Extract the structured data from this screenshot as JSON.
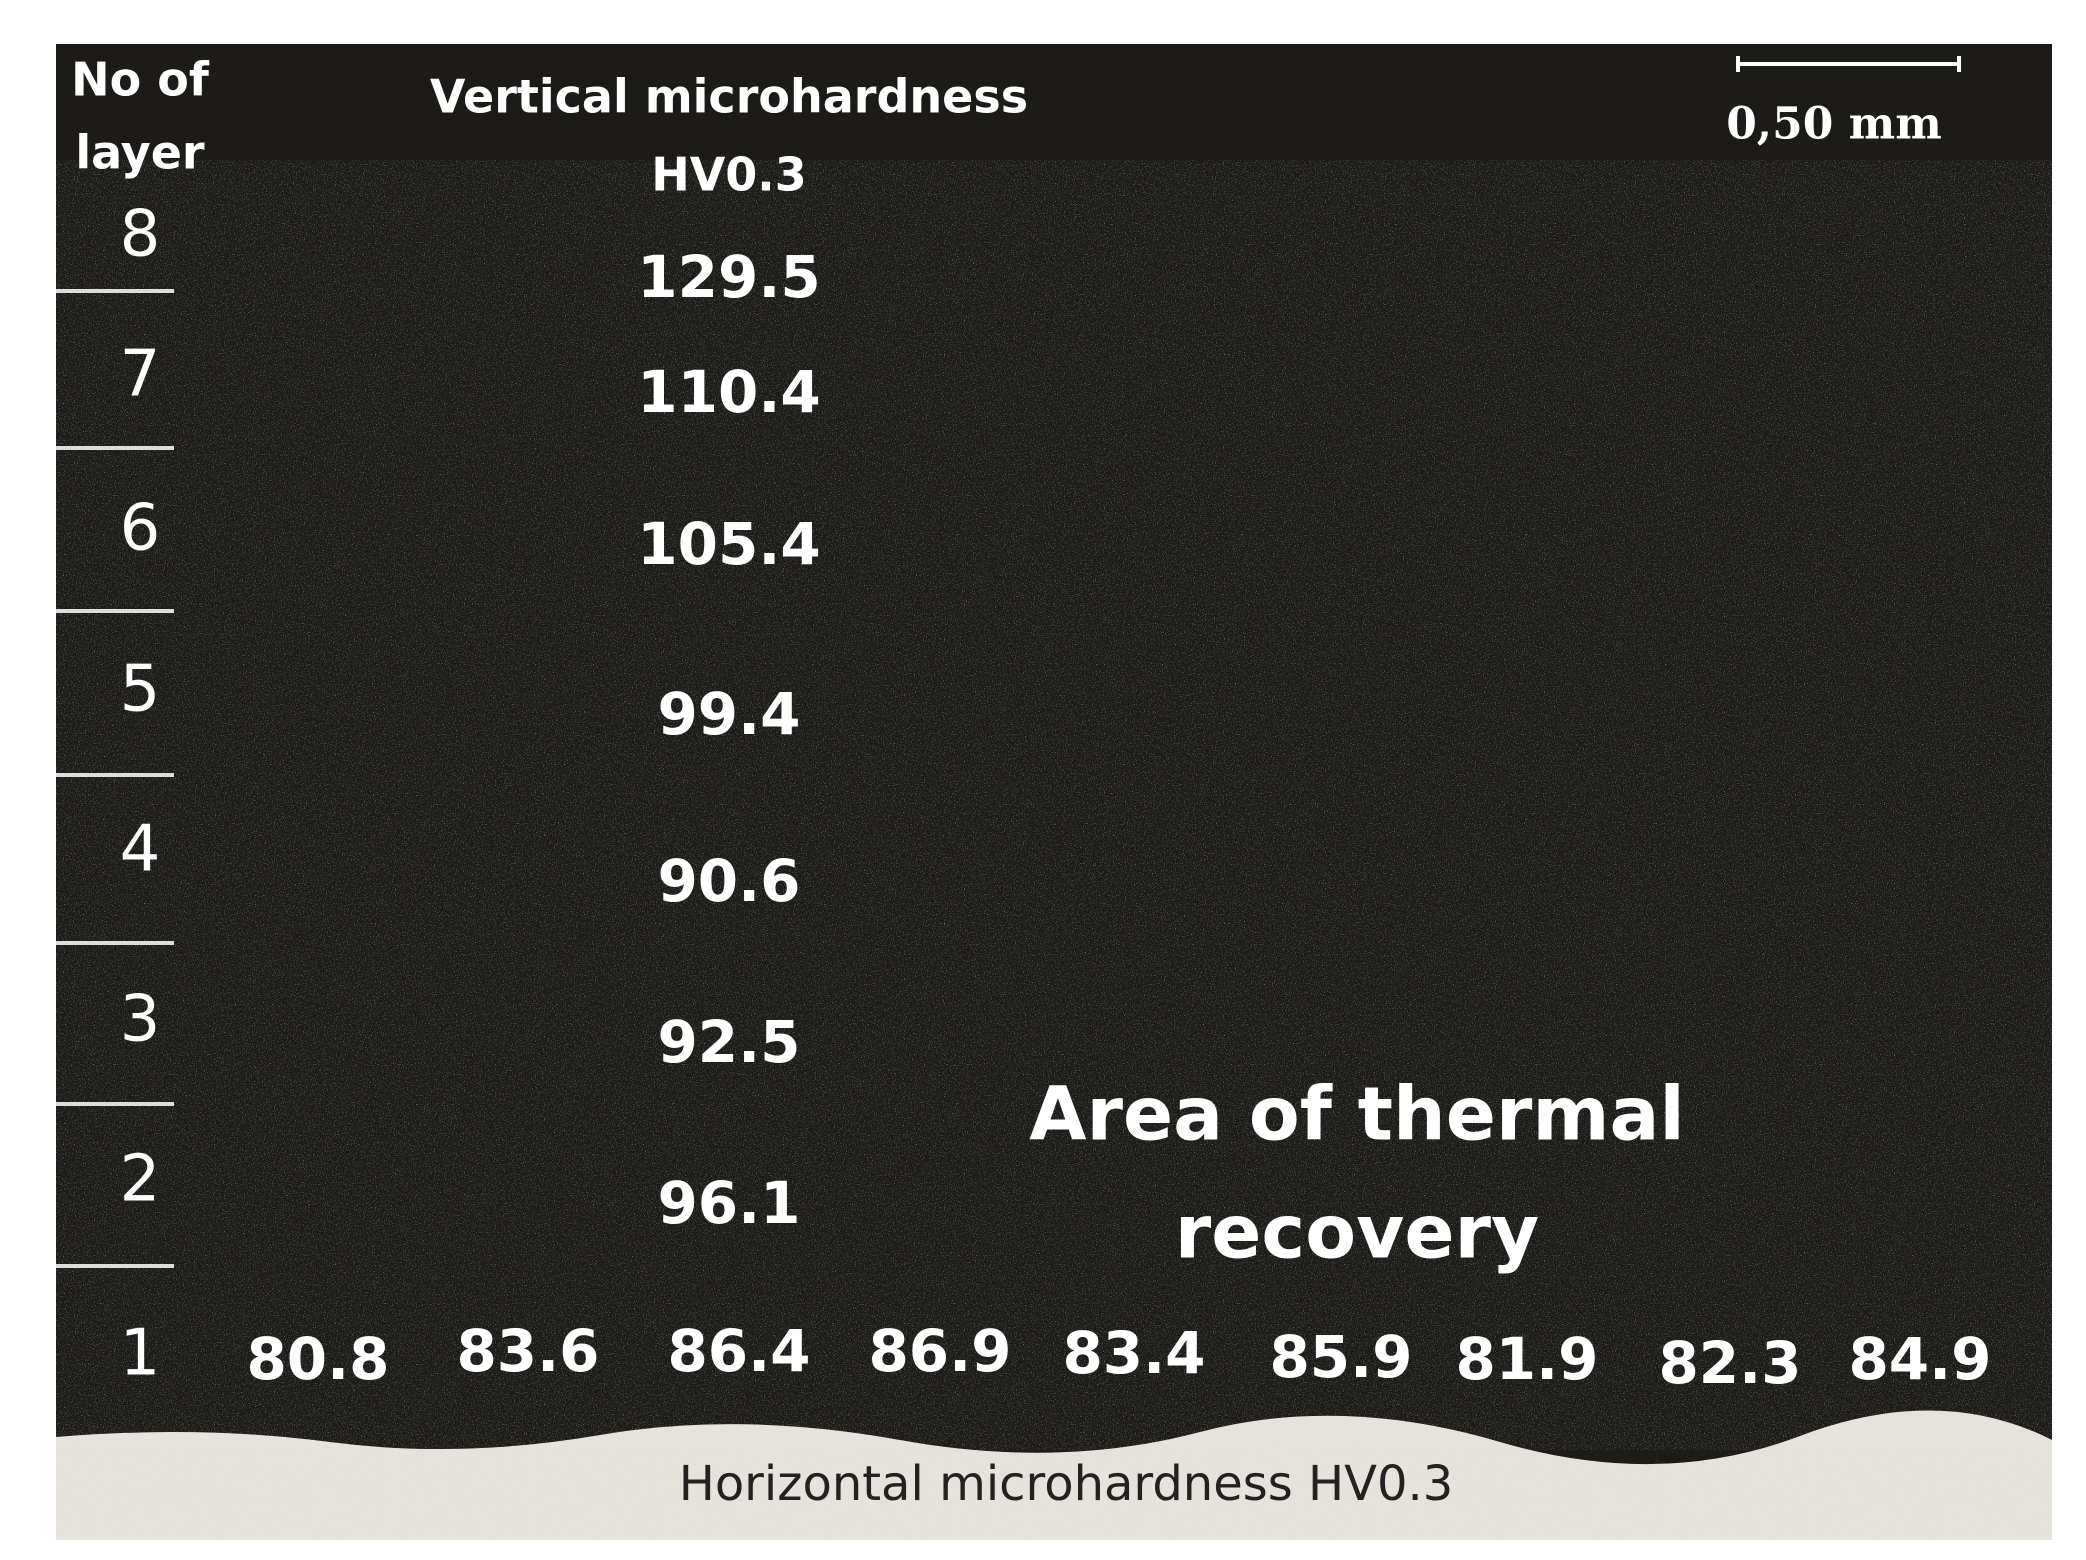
{
  "header": {
    "layer_label": [
      "No of",
      "layer"
    ],
    "vertical_label": [
      "Vertical microhardness",
      "HV0.3"
    ],
    "scale_bar": "0,50 mm"
  },
  "layers": [
    {
      "number": "8",
      "hardness": "129.5"
    },
    {
      "number": "7",
      "hardness": "110.4"
    },
    {
      "number": "6",
      "hardness": "105.4"
    },
    {
      "number": "5",
      "hardness": "99.4"
    },
    {
      "number": "4",
      "hardness": "90.6"
    },
    {
      "number": "3",
      "hardness": "92.5"
    },
    {
      "number": "2",
      "hardness": "96.1"
    }
  ],
  "bottom_layer": {
    "number": "1",
    "values": [
      "80.8",
      "83.6",
      "86.4",
      "86.9",
      "83.4",
      "85.9",
      "81.9",
      "82.3",
      "84.9"
    ]
  },
  "annotation": [
    "Area of thermal",
    "recovery"
  ],
  "footer": "Horizontal microhardness HV0.3"
}
